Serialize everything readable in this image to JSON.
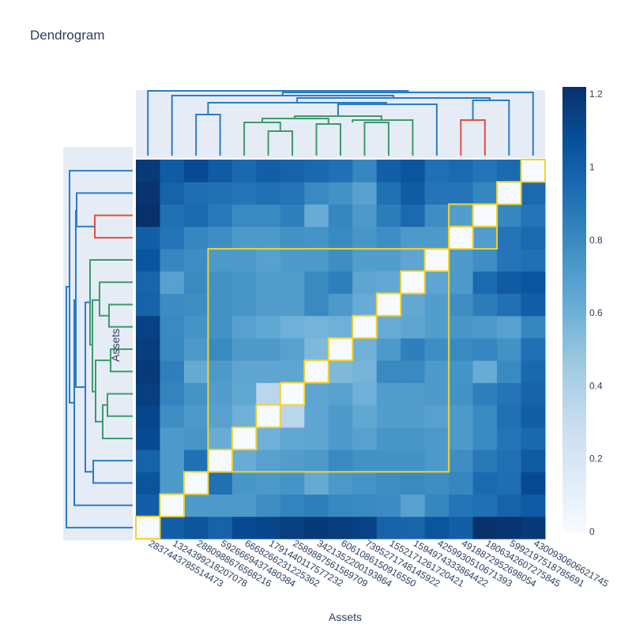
{
  "chart_data": {
    "type": "heatmap",
    "title": "Dendrogram",
    "xlabel": "Assets",
    "ylabel": "Assets",
    "x_tick_labels": [
      "2837443785514473",
      "1324399218207078",
      "2880988676568216",
      "5926669437480384",
      "6668266231225362",
      "1791440117577232",
      "2589887561569709",
      "3421352200193864",
      "6061086150916550",
      "7395271748145922",
      "1552171261720421",
      "1594974333864422",
      "4259930510671393",
      "4918872952698054",
      "1806342607275845",
      "5992197518785691",
      "4300930606621745"
    ],
    "colorbar": {
      "ticks": [
        0,
        0.2,
        0.4,
        0.6,
        0.8,
        1,
        1.2
      ],
      "range": [
        0,
        1.22
      ],
      "colorscale": "Blues (reversed)"
    },
    "clusters": [
      {
        "name": "cluster-1",
        "color": "#f5d22a",
        "start": 3,
        "end": 12
      },
      {
        "name": "cluster-2",
        "color": "#f5d22a",
        "start": 13,
        "end": 14
      }
    ],
    "dendrogram_colors": {
      "blue": "#2a7cc7",
      "green": "#3d9a6a",
      "red": "#e74c3c"
    },
    "matrix": [
      [
        0.0,
        1.0,
        1.05,
        0.98,
        1.1,
        1.12,
        1.15,
        1.18,
        1.16,
        1.14,
        0.98,
        0.97,
        1.05,
        1.0,
        1.25,
        1.2,
        1.18
      ],
      [
        1.0,
        0.0,
        0.72,
        0.72,
        0.72,
        0.78,
        0.83,
        0.85,
        0.81,
        0.8,
        0.79,
        0.68,
        0.82,
        0.9,
        0.92,
        0.98,
        1.02
      ],
      [
        1.05,
        0.72,
        0.0,
        0.92,
        0.74,
        0.72,
        0.75,
        0.63,
        0.73,
        0.75,
        0.78,
        0.8,
        0.78,
        0.82,
        0.95,
        0.93,
        1.1
      ],
      [
        0.98,
        0.72,
        0.92,
        0.0,
        0.62,
        0.68,
        0.7,
        0.72,
        0.8,
        0.76,
        0.76,
        0.76,
        0.72,
        0.78,
        0.88,
        0.92,
        1.02
      ],
      [
        1.1,
        0.72,
        0.74,
        0.62,
        0.0,
        0.6,
        0.65,
        0.66,
        0.72,
        0.68,
        0.74,
        0.74,
        0.72,
        0.72,
        0.8,
        0.9,
        0.96
      ],
      [
        1.12,
        0.78,
        0.72,
        0.68,
        0.6,
        0.0,
        0.35,
        0.66,
        0.72,
        0.65,
        0.7,
        0.7,
        0.68,
        0.72,
        0.8,
        0.92,
        1.0
      ],
      [
        1.15,
        0.83,
        0.75,
        0.7,
        0.65,
        0.35,
        0.0,
        0.66,
        0.68,
        0.6,
        0.7,
        0.7,
        0.72,
        0.76,
        0.85,
        0.9,
        0.98
      ],
      [
        1.18,
        0.85,
        0.63,
        0.72,
        0.66,
        0.66,
        0.66,
        0.0,
        0.55,
        0.58,
        0.8,
        0.8,
        0.72,
        0.75,
        0.62,
        0.8,
        0.96
      ],
      [
        1.16,
        0.81,
        0.73,
        0.8,
        0.72,
        0.72,
        0.68,
        0.55,
        0.0,
        0.6,
        0.72,
        0.85,
        0.78,
        0.8,
        0.82,
        0.76,
        0.92
      ],
      [
        1.14,
        0.8,
        0.75,
        0.76,
        0.68,
        0.65,
        0.6,
        0.58,
        0.6,
        0.0,
        0.62,
        0.66,
        0.7,
        0.74,
        0.72,
        0.68,
        0.82
      ],
      [
        0.98,
        0.79,
        0.78,
        0.76,
        0.74,
        0.7,
        0.7,
        0.8,
        0.72,
        0.62,
        0.0,
        0.64,
        0.7,
        0.78,
        0.86,
        0.92,
        1.0
      ],
      [
        0.97,
        0.68,
        0.8,
        0.76,
        0.74,
        0.7,
        0.7,
        0.8,
        0.85,
        0.66,
        0.64,
        0.0,
        0.66,
        0.72,
        0.95,
        1.02,
        1.05
      ],
      [
        1.05,
        0.82,
        0.78,
        0.72,
        0.72,
        0.68,
        0.72,
        0.72,
        0.78,
        0.7,
        0.7,
        0.66,
        0.0,
        0.72,
        0.78,
        0.9,
        0.92
      ],
      [
        1.0,
        0.9,
        0.82,
        0.78,
        0.72,
        0.72,
        0.76,
        0.75,
        0.8,
        0.74,
        0.78,
        0.72,
        0.72,
        0.0,
        0.7,
        0.9,
        0.95
      ],
      [
        1.25,
        0.92,
        0.95,
        0.88,
        0.8,
        0.8,
        0.85,
        0.62,
        0.82,
        0.72,
        0.86,
        0.95,
        0.78,
        0.7,
        0.0,
        0.82,
        0.9
      ],
      [
        1.2,
        0.98,
        0.93,
        0.92,
        0.9,
        0.92,
        0.9,
        0.8,
        0.76,
        0.68,
        0.92,
        1.02,
        0.9,
        0.9,
        0.82,
        0.0,
        0.95
      ],
      [
        1.18,
        1.02,
        1.1,
        1.02,
        0.96,
        1.0,
        0.98,
        0.96,
        0.92,
        0.82,
        1.0,
        1.05,
        0.92,
        0.95,
        0.9,
        0.95,
        0.0
      ]
    ]
  }
}
